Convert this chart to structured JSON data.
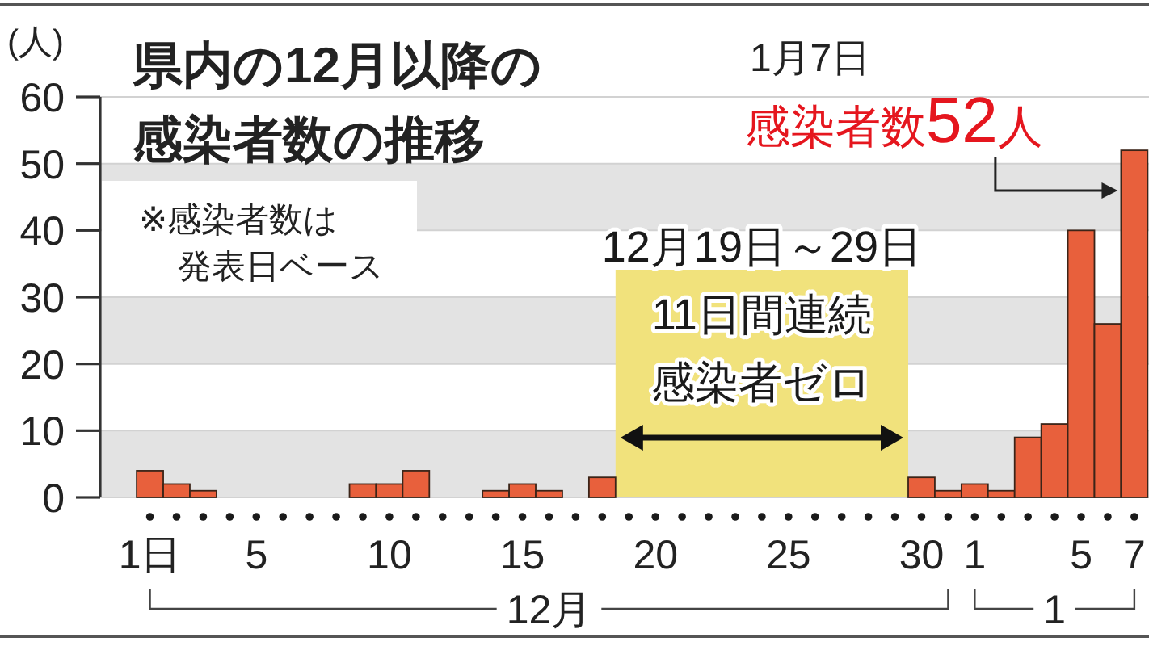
{
  "chart_data": {
    "type": "bar",
    "title": "県内の12月以降の感染者数の推移",
    "ylabel": "(人)",
    "categories": [
      "1日",
      null,
      null,
      null,
      "5",
      null,
      null,
      null,
      null,
      "10",
      null,
      null,
      null,
      null,
      "15",
      null,
      null,
      null,
      null,
      "20",
      null,
      null,
      null,
      null,
      "25",
      null,
      null,
      null,
      null,
      "30",
      null,
      "1",
      null,
      null,
      null,
      "5",
      null,
      "7"
    ],
    "values": [
      4,
      2,
      1,
      0,
      0,
      0,
      0,
      0,
      2,
      2,
      4,
      0,
      0,
      1,
      2,
      1,
      0,
      3,
      0,
      0,
      0,
      0,
      0,
      0,
      0,
      0,
      0,
      0,
      0,
      3,
      1,
      2,
      1,
      9,
      11,
      40,
      26,
      52
    ],
    "color": "#e8603c",
    "ylim": [
      0,
      60
    ],
    "yticks": [
      0,
      10,
      20,
      30,
      40,
      50,
      60
    ],
    "grid": "y",
    "annotations": [
      "※感染者数は発表日ベース",
      "12月19日～29日",
      "11日間連続感染者ゼロ",
      "1月7日",
      "感染者数52人",
      "12月",
      "1"
    ]
  }
}
